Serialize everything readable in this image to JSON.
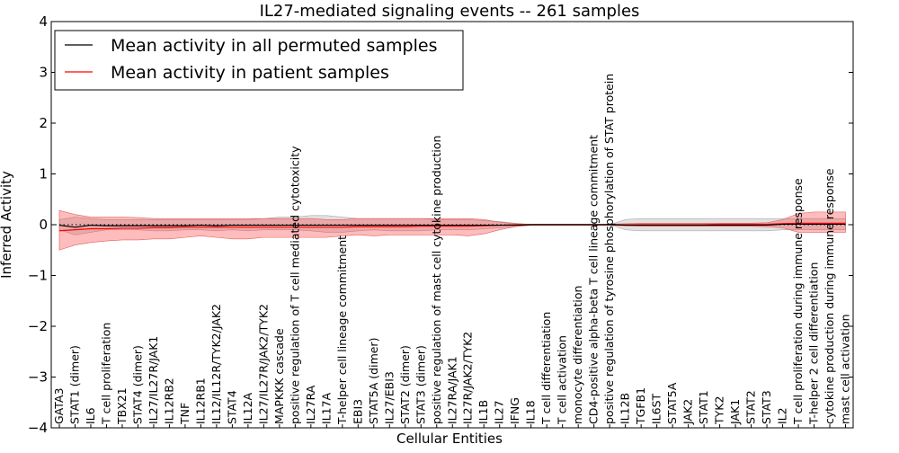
{
  "chart_data": {
    "type": "line",
    "title": "IL27-mediated signaling events -- 261 samples",
    "xlabel": "Cellular Entities",
    "ylabel": "Inferred Activity",
    "ylim": [
      -4,
      4
    ],
    "yticks": [
      -4,
      -3,
      -2,
      -1,
      0,
      1,
      2,
      3,
      4
    ],
    "ytick_labels": [
      "−4",
      "−3",
      "−2",
      "−1",
      "0",
      "1",
      "2",
      "3",
      "4"
    ],
    "grid": false,
    "legend_position": "top-left",
    "categories": [
      "GATA3",
      "STAT1 (dimer)",
      "IL6",
      "T cell proliferation",
      "TBX21",
      "STAT4 (dimer)",
      "IL27/IL27R/JAK1",
      "IL12RB2",
      "TNF",
      "IL12RB1",
      "IL12/IL12R/TYK2/JAK2",
      "STAT4",
      "IL12A",
      "IL27/IL27R/JAK2/TYK2",
      "MAPKKK cascade",
      "positive regulation of T cell mediated cytotoxicity",
      "IL27RA",
      "IL17A",
      "T-helper cell lineage commitment",
      "EBI3",
      "STAT5A (dimer)",
      "IL27/EBI3",
      "STAT2 (dimer)",
      "STAT3 (dimer)",
      "positive regulation of mast cell cytokine production",
      "IL27RA/JAK1",
      "IL27R/JAK2/TYK2",
      "IL1B",
      "IL27",
      "IFNG",
      "IL18",
      "T cell differentiation",
      "T cell activation",
      "monocyte differentiation",
      "CD4-positive alpha-beta T cell lineage commitment",
      "positive regulation of tyrosine phosphorylation of STAT protein",
      "IL12B",
      "TGFB1",
      "IL6ST",
      "STAT5A",
      "JAK2",
      "STAT1",
      "TYK2",
      "JAK1",
      "STAT2",
      "STAT3",
      "IL2",
      "T cell proliferation during immune response",
      "T-helper 2 cell differentiation",
      "cytokine production during immune response",
      "mast cell activation"
    ],
    "series": [
      {
        "name": "Mean activity in all permuted samples",
        "color": "#000000",
        "values": [
          -0.01,
          -0.05,
          -0.01,
          -0.02,
          -0.02,
          -0.02,
          -0.02,
          -0.02,
          -0.02,
          -0.01,
          -0.02,
          -0.01,
          -0.01,
          -0.01,
          -0.01,
          -0.01,
          -0.01,
          -0.01,
          -0.01,
          -0.01,
          -0.01,
          -0.01,
          -0.01,
          -0.01,
          -0.01,
          -0.01,
          -0.01,
          -0.01,
          -0.01,
          -0.01,
          0,
          0,
          0,
          0,
          0,
          0,
          -0.01,
          -0.01,
          -0.01,
          -0.01,
          -0.01,
          -0.01,
          -0.01,
          -0.01,
          -0.01,
          -0.01,
          0.01,
          0.01,
          0.01,
          0.01,
          0.01
        ],
        "band_low": [
          -0.1,
          -0.2,
          -0.15,
          -0.1,
          -0.1,
          -0.1,
          -0.12,
          -0.12,
          -0.1,
          -0.1,
          -0.12,
          -0.1,
          -0.12,
          -0.1,
          -0.1,
          -0.1,
          -0.12,
          -0.15,
          -0.15,
          -0.12,
          -0.1,
          -0.12,
          -0.12,
          -0.12,
          -0.1,
          -0.1,
          -0.1,
          -0.08,
          -0.06,
          -0.03,
          0,
          0,
          0,
          0,
          0,
          0,
          -0.1,
          -0.12,
          -0.12,
          -0.12,
          -0.12,
          -0.12,
          -0.12,
          -0.12,
          -0.12,
          -0.12,
          -0.1,
          -0.1,
          -0.1,
          -0.1,
          -0.1
        ],
        "band_high": [
          0.1,
          0.15,
          0.12,
          0.1,
          0.1,
          0.1,
          0.1,
          0.1,
          0.1,
          0.1,
          0.1,
          0.1,
          0.1,
          0.12,
          0.15,
          0.15,
          0.18,
          0.18,
          0.15,
          0.12,
          0.12,
          0.12,
          0.12,
          0.12,
          0.1,
          0.1,
          0.1,
          0.08,
          0.06,
          0.03,
          0,
          0,
          0,
          0,
          0,
          0,
          0.1,
          0.12,
          0.12,
          0.12,
          0.12,
          0.12,
          0.12,
          0.12,
          0.12,
          0.12,
          0.12,
          0.12,
          0.12,
          0.12,
          0.12
        ]
      },
      {
        "name": "Mean activity in patient samples",
        "color": "#ff0000",
        "values": [
          -0.12,
          -0.1,
          -0.08,
          -0.08,
          -0.07,
          -0.07,
          -0.06,
          -0.06,
          -0.05,
          -0.05,
          -0.05,
          -0.05,
          -0.05,
          -0.05,
          -0.05,
          -0.05,
          -0.05,
          -0.05,
          -0.05,
          -0.04,
          -0.04,
          -0.04,
          -0.04,
          -0.03,
          -0.03,
          -0.03,
          -0.03,
          -0.02,
          -0.01,
          0,
          0,
          0,
          0,
          0,
          0,
          0,
          0,
          0,
          0,
          0,
          0,
          0,
          0.01,
          0.01,
          0.01,
          0.01,
          0.02,
          0.03,
          0.03,
          0.03,
          0.03
        ],
        "band_low": [
          -0.5,
          -0.4,
          -0.35,
          -0.32,
          -0.3,
          -0.3,
          -0.28,
          -0.28,
          -0.25,
          -0.22,
          -0.25,
          -0.28,
          -0.28,
          -0.25,
          -0.25,
          -0.25,
          -0.25,
          -0.25,
          -0.22,
          -0.2,
          -0.22,
          -0.2,
          -0.2,
          -0.2,
          -0.2,
          -0.2,
          -0.22,
          -0.18,
          -0.1,
          -0.04,
          -0.01,
          -0.01,
          -0.01,
          -0.01,
          -0.01,
          -0.01,
          -0.02,
          -0.03,
          -0.03,
          -0.03,
          -0.03,
          -0.03,
          -0.03,
          -0.03,
          -0.03,
          -0.04,
          -0.06,
          -0.15,
          -0.15,
          -0.15,
          -0.15
        ],
        "band_high": [
          0.28,
          0.2,
          0.15,
          0.15,
          0.15,
          0.14,
          0.12,
          0.12,
          0.12,
          0.12,
          0.12,
          0.12,
          0.12,
          0.12,
          0.12,
          0.12,
          0.12,
          0.1,
          0.1,
          0.12,
          0.12,
          0.12,
          0.12,
          0.12,
          0.12,
          0.12,
          0.12,
          0.1,
          0.05,
          0.02,
          0.01,
          0.01,
          0.01,
          0.01,
          0.01,
          0.01,
          0.02,
          0.03,
          0.03,
          0.03,
          0.03,
          0.03,
          0.03,
          0.03,
          0.03,
          0.04,
          0.1,
          0.22,
          0.25,
          0.25,
          0.25
        ]
      }
    ]
  }
}
